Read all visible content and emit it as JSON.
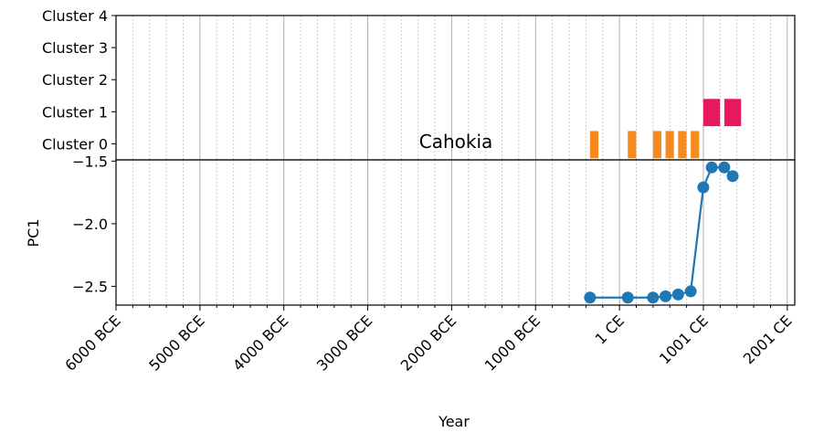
{
  "chart_data": [
    {
      "type": "bar",
      "annotation": "Cahokia",
      "ylim": [
        -0.5,
        4
      ],
      "yticks": [
        {
          "value": 0,
          "label": "Cluster 0"
        },
        {
          "value": 1,
          "label": "Cluster 1"
        },
        {
          "value": 2,
          "label": "Cluster 2"
        },
        {
          "value": 3,
          "label": "Cluster 3"
        },
        {
          "value": 4,
          "label": "Cluster 4"
        }
      ],
      "bars": [
        {
          "start": -350,
          "end": -250,
          "cluster": 0,
          "color": "#f58a1f"
        },
        {
          "start": 100,
          "end": 200,
          "cluster": 0,
          "color": "#f58a1f"
        },
        {
          "start": 400,
          "end": 500,
          "cluster": 0,
          "color": "#f58a1f"
        },
        {
          "start": 550,
          "end": 650,
          "cluster": 0,
          "color": "#f58a1f"
        },
        {
          "start": 700,
          "end": 800,
          "cluster": 0,
          "color": "#f58a1f"
        },
        {
          "start": 850,
          "end": 950,
          "cluster": 0,
          "color": "#f58a1f"
        },
        {
          "start": 1000,
          "end": 1200,
          "cluster": 1,
          "color": "#e8185f"
        },
        {
          "start": 1250,
          "end": 1450,
          "cluster": 1,
          "color": "#e8185f"
        }
      ]
    },
    {
      "type": "line",
      "xlabel": "Year",
      "ylabel": "PC1",
      "xlim": [
        -5999,
        2090
      ],
      "ylim": [
        -2.65,
        -1.49
      ],
      "xticks": [
        {
          "value": -5999,
          "label": "6000 BCE"
        },
        {
          "value": -4999,
          "label": "5000 BCE"
        },
        {
          "value": -3999,
          "label": "4000 BCE"
        },
        {
          "value": -2999,
          "label": "3000 BCE"
        },
        {
          "value": -1999,
          "label": "2000 BCE"
        },
        {
          "value": -999,
          "label": "1000 BCE"
        },
        {
          "value": 1,
          "label": "1 CE"
        },
        {
          "value": 1001,
          "label": "1001 CE"
        },
        {
          "value": 2001,
          "label": "2001 CE"
        }
      ],
      "xminorticks": [
        -5799,
        -5599,
        -5399,
        -5199,
        -4799,
        -4599,
        -4399,
        -4199,
        -3799,
        -3599,
        -3399,
        -3199,
        -2799,
        -2599,
        -2399,
        -2199,
        -1799,
        -1599,
        -1399,
        -1199,
        -799,
        -599,
        -399,
        -199,
        201,
        401,
        601,
        801,
        1201,
        1401,
        1601,
        1801
      ],
      "yticks": [
        {
          "value": -2.5,
          "label": "−2.5"
        },
        {
          "value": -2.0,
          "label": "−2.0"
        },
        {
          "value": -1.5,
          "label": "−1.5"
        }
      ],
      "grid": true,
      "x": [
        -350,
        100,
        400,
        550,
        700,
        850,
        1000,
        1100,
        1250,
        1350
      ],
      "series": [
        {
          "color": "#1f77b4",
          "values": [
            -2.59,
            -2.59,
            -2.59,
            -2.58,
            -2.565,
            -2.54,
            -1.71,
            -1.55,
            -1.55,
            -1.62
          ]
        }
      ]
    }
  ]
}
